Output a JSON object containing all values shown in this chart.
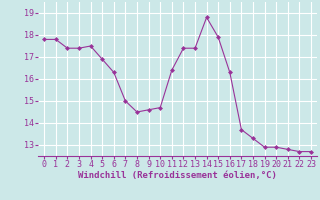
{
  "x": [
    0,
    1,
    2,
    3,
    4,
    5,
    6,
    7,
    8,
    9,
    10,
    11,
    12,
    13,
    14,
    15,
    16,
    17,
    18,
    19,
    20,
    21,
    22,
    23
  ],
  "y": [
    17.8,
    17.8,
    17.4,
    17.4,
    17.5,
    16.9,
    16.3,
    15.0,
    14.5,
    14.6,
    14.7,
    16.4,
    17.4,
    17.4,
    18.8,
    17.9,
    16.3,
    13.7,
    13.3,
    12.9,
    12.9,
    12.8,
    12.7,
    12.7
  ],
  "line_color": "#993399",
  "marker": "D",
  "marker_size": 2,
  "bg_color": "#cce8e8",
  "grid_color": "#ffffff",
  "xlabel": "Windchill (Refroidissement éolien,°C)",
  "xlabel_color": "#993399",
  "tick_color": "#993399",
  "ylim": [
    12.5,
    19.5
  ],
  "xlim": [
    -0.5,
    23.5
  ],
  "yticks": [
    13,
    14,
    15,
    16,
    17,
    18,
    19
  ],
  "xticks": [
    0,
    1,
    2,
    3,
    4,
    5,
    6,
    7,
    8,
    9,
    10,
    11,
    12,
    13,
    14,
    15,
    16,
    17,
    18,
    19,
    20,
    21,
    22,
    23
  ],
  "tick_fontsize": 6,
  "xlabel_fontsize": 6.5
}
